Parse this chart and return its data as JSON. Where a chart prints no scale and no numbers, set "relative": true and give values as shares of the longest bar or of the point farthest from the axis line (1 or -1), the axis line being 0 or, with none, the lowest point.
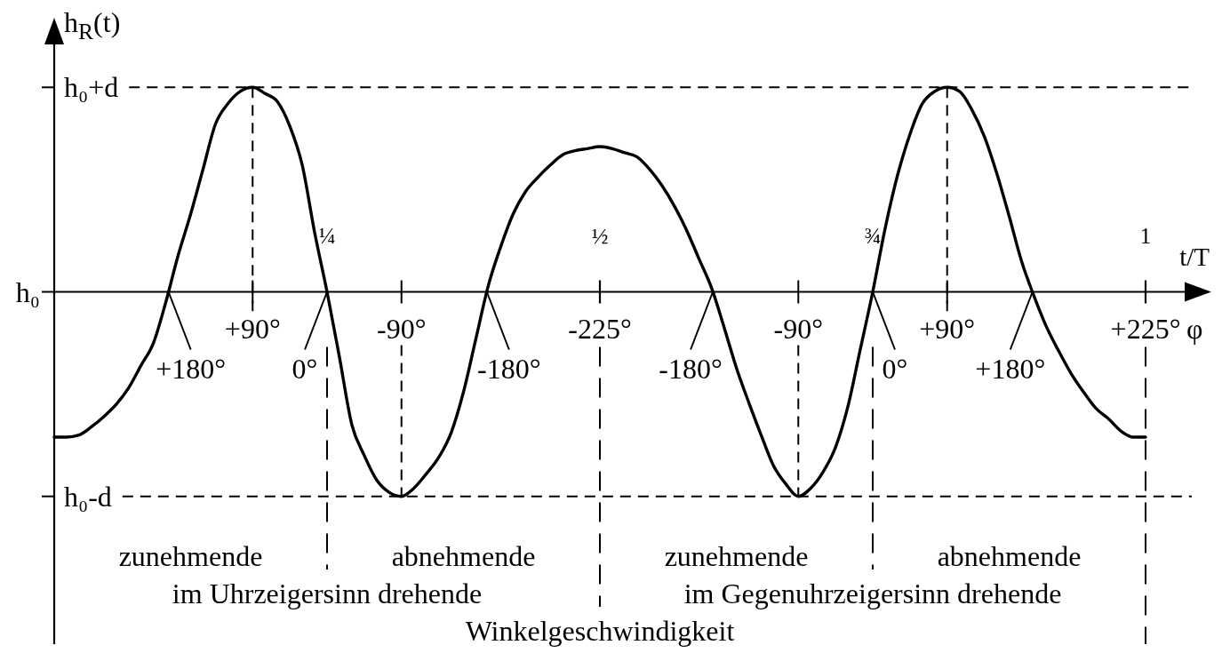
{
  "chart_data": {
    "type": "line",
    "relative": true,
    "xlabel": "t/T",
    "ylabel": "h$_{R}$(t)",
    "categories": [
      null,
      null,
      null,
      null,
      null,
      null,
      null,
      null,
      null,
      null,
      null,
      null,
      null,
      null,
      null,
      null,
      null,
      null,
      null,
      null,
      null,
      null,
      "¼",
      null,
      null,
      null,
      null,
      null,
      null,
      null,
      null,
      null,
      null,
      null,
      null,
      null,
      null,
      null,
      null,
      null,
      null,
      null,
      null,
      null,
      "½",
      null,
      null,
      null,
      null,
      null,
      null,
      null,
      null,
      null,
      null,
      null,
      null,
      null,
      null,
      null,
      null,
      null,
      null,
      null,
      null,
      null,
      "¾",
      null,
      null,
      null,
      null,
      null,
      null,
      null,
      null,
      null,
      null,
      null,
      null,
      null,
      null,
      null,
      null,
      null,
      null,
      null,
      null,
      null,
      "1"
    ],
    "series": [
      {
        "color": "#000000",
        "values": [
          -0.71,
          -0.71,
          -0.7,
          -0.66,
          -0.61,
          -0.55,
          -0.47,
          -0.36,
          -0.25,
          -0.05,
          0.18,
          0.38,
          0.6,
          0.82,
          0.92,
          0.98,
          1,
          0.97,
          0.93,
          0.81,
          0.62,
          0.29,
          0,
          -0.32,
          -0.65,
          -0.8,
          -0.92,
          -0.98,
          -1,
          -0.96,
          -0.89,
          -0.81,
          -0.69,
          -0.49,
          -0.23,
          0.03,
          0.22,
          0.38,
          0.49,
          0.56,
          0.62,
          0.67,
          0.69,
          0.7,
          0.71,
          0.7,
          0.68,
          0.66,
          0.6,
          0.52,
          0.42,
          0.3,
          0.16,
          0.02,
          -0.17,
          -0.37,
          -0.54,
          -0.7,
          -0.85,
          -0.94,
          -1,
          -0.96,
          -0.88,
          -0.76,
          -0.56,
          -0.28,
          0,
          0.31,
          0.57,
          0.77,
          0.92,
          0.98,
          1,
          0.98,
          0.89,
          0.76,
          0.58,
          0.37,
          0.15,
          -0.02,
          -0.17,
          -0.29,
          -0.4,
          -0.49,
          -0.57,
          -0.62,
          -0.68,
          -0.71,
          -0.71
        ]
      }
    ],
    "ref_lines": [
      {
        "axis": "y",
        "value": 1,
        "label": "h₀+d",
        "line_style": "dashed"
      },
      {
        "axis": "y",
        "value": -1,
        "label": "h₀-d",
        "line_style": "dashed"
      }
    ],
    "annotations": [
      "+180°",
      "+90°",
      "0°",
      "-90°",
      "-180°",
      "-225°",
      "-180°",
      "-90°",
      "0°",
      "+90°",
      "+180°",
      "+225°",
      "h₀",
      "φ",
      "zunehmende",
      "abnehmende",
      "zunehmende",
      "abnehmende",
      "im Uhrzeigersinn drehende",
      "im Gegenuhrzeigersinn drehende",
      "Winkelgeschwindigkeit"
    ]
  }
}
